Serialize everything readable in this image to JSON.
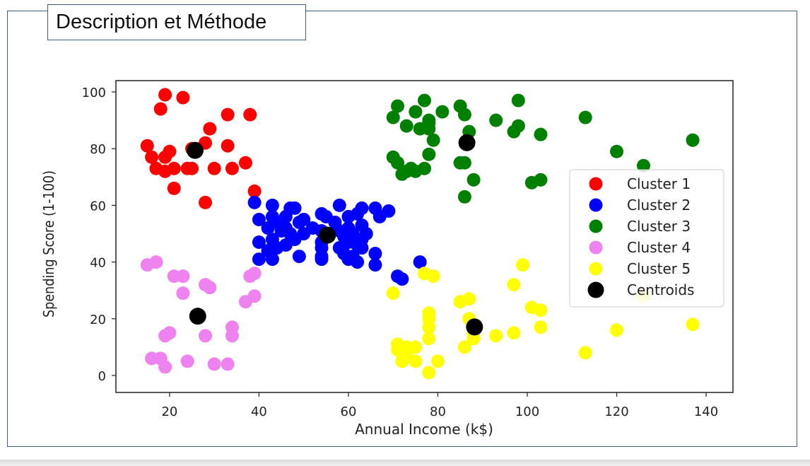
{
  "page": {
    "header_title": "Description et Méthode"
  },
  "chart_data": {
    "type": "scatter",
    "title": "",
    "xlabel": "Annual Income (k$)",
    "ylabel": "Spending Score (1-100)",
    "xlim": [
      8,
      146
    ],
    "ylim": [
      -6,
      104
    ],
    "xticks": [
      20,
      40,
      60,
      80,
      100,
      120,
      140
    ],
    "yticks": [
      0,
      20,
      40,
      60,
      80,
      100
    ],
    "grid": false,
    "legend_position": "center-right",
    "series": [
      {
        "name": "Cluster 1",
        "color": "#ff0000",
        "points": [
          [
            19,
            99
          ],
          [
            23,
            98
          ],
          [
            18,
            94
          ],
          [
            33,
            92
          ],
          [
            38,
            92
          ],
          [
            29,
            87
          ],
          [
            28,
            82
          ],
          [
            15,
            81
          ],
          [
            25,
            80
          ],
          [
            20,
            79
          ],
          [
            16,
            77
          ],
          [
            19,
            77
          ],
          [
            33,
            81
          ],
          [
            21,
            73
          ],
          [
            17,
            73
          ],
          [
            24,
            73
          ],
          [
            25,
            73
          ],
          [
            30,
            73
          ],
          [
            34,
            73
          ],
          [
            19,
            72
          ],
          [
            37,
            75
          ],
          [
            21,
            66
          ],
          [
            39,
            65
          ],
          [
            28,
            61
          ]
        ]
      },
      {
        "name": "Cluster 2",
        "color": "#0000ff",
        "points": [
          [
            39,
            61
          ],
          [
            43,
            60
          ],
          [
            47,
            59
          ],
          [
            48,
            59
          ],
          [
            54,
            57
          ],
          [
            58,
            60
          ],
          [
            63,
            59
          ],
          [
            66,
            59
          ],
          [
            69,
            58
          ],
          [
            62,
            57
          ],
          [
            55,
            56
          ],
          [
            46,
            56
          ],
          [
            43,
            56
          ],
          [
            60,
            56
          ],
          [
            67,
            56
          ],
          [
            40,
            55
          ],
          [
            44,
            54
          ],
          [
            49,
            54
          ],
          [
            50,
            55
          ],
          [
            57,
            54
          ],
          [
            63,
            53
          ],
          [
            42,
            52
          ],
          [
            46,
            52
          ],
          [
            52,
            52
          ],
          [
            60,
            52
          ],
          [
            45,
            51
          ],
          [
            54,
            51
          ],
          [
            58,
            51
          ],
          [
            47,
            50
          ],
          [
            50,
            50
          ],
          [
            61,
            50
          ],
          [
            64,
            50
          ],
          [
            55,
            49
          ],
          [
            59,
            49
          ],
          [
            43,
            48
          ],
          [
            48,
            48
          ],
          [
            63,
            48
          ],
          [
            40,
            47
          ],
          [
            54,
            47
          ],
          [
            60,
            47
          ],
          [
            46,
            46
          ],
          [
            62,
            46
          ],
          [
            44,
            45
          ],
          [
            54,
            45
          ],
          [
            58,
            45
          ],
          [
            63,
            45
          ],
          [
            42,
            44
          ],
          [
            59,
            43
          ],
          [
            66,
            43
          ],
          [
            49,
            42
          ],
          [
            54,
            42
          ],
          [
            61,
            42
          ],
          [
            40,
            41
          ],
          [
            43,
            41
          ],
          [
            54,
            41
          ],
          [
            60,
            41
          ],
          [
            62,
            40
          ],
          [
            66,
            39
          ],
          [
            76,
            40
          ],
          [
            71,
            35
          ],
          [
            72,
            34
          ]
        ]
      },
      {
        "name": "Cluster 3",
        "color": "#008000",
        "points": [
          [
            70,
            91
          ],
          [
            71,
            95
          ],
          [
            75,
            93
          ],
          [
            77,
            97
          ],
          [
            81,
            93
          ],
          [
            85,
            95
          ],
          [
            86,
            92
          ],
          [
            73,
            88
          ],
          [
            76,
            87
          ],
          [
            78,
            89
          ],
          [
            78,
            90
          ],
          [
            78,
            87
          ],
          [
            87,
            86
          ],
          [
            93,
            90
          ],
          [
            98,
            97
          ],
          [
            97,
            86
          ],
          [
            98,
            88
          ],
          [
            103,
            85
          ],
          [
            113,
            91
          ],
          [
            79,
            83
          ],
          [
            137,
            83
          ],
          [
            120,
            79
          ],
          [
            78,
            78
          ],
          [
            70,
            77
          ],
          [
            71,
            75
          ],
          [
            74,
            73
          ],
          [
            73,
            72
          ],
          [
            75,
            72
          ],
          [
            72,
            71
          ],
          [
            77,
            73
          ],
          [
            85,
            75
          ],
          [
            86,
            75
          ],
          [
            126,
            74
          ],
          [
            88,
            69
          ],
          [
            101,
            68
          ],
          [
            103,
            69
          ],
          [
            86,
            63
          ]
        ]
      },
      {
        "name": "Cluster 4",
        "color": "#ee82ee",
        "points": [
          [
            17,
            40
          ],
          [
            15,
            39
          ],
          [
            21,
            35
          ],
          [
            23,
            35
          ],
          [
            38,
            35
          ],
          [
            39,
            36
          ],
          [
            28,
            32
          ],
          [
            29,
            31
          ],
          [
            23,
            29
          ],
          [
            37,
            26
          ],
          [
            39,
            28
          ],
          [
            20,
            15
          ],
          [
            19,
            14
          ],
          [
            28,
            14
          ],
          [
            34,
            14
          ],
          [
            34,
            17
          ],
          [
            16,
            6
          ],
          [
            18,
            6
          ],
          [
            19,
            3
          ],
          [
            24,
            5
          ],
          [
            30,
            4
          ],
          [
            33,
            4
          ]
        ]
      },
      {
        "name": "Cluster 5",
        "color": "#ffff00",
        "points": [
          [
            77,
            36
          ],
          [
            79,
            35
          ],
          [
            70,
            29
          ],
          [
            99,
            39
          ],
          [
            97,
            32
          ],
          [
            85,
            26
          ],
          [
            87,
            27
          ],
          [
            126,
            28
          ],
          [
            101,
            24
          ],
          [
            103,
            23
          ],
          [
            78,
            22
          ],
          [
            78,
            20
          ],
          [
            87,
            20
          ],
          [
            78,
            17
          ],
          [
            88,
            13
          ],
          [
            88,
            15
          ],
          [
            93,
            14
          ],
          [
            97,
            15
          ],
          [
            103,
            17
          ],
          [
            120,
            16
          ],
          [
            137,
            18
          ],
          [
            78,
            13
          ],
          [
            71,
            11
          ],
          [
            71,
            9
          ],
          [
            73,
            10
          ],
          [
            75,
            10
          ],
          [
            86,
            10
          ],
          [
            113,
            8
          ],
          [
            72,
            5
          ],
          [
            75,
            5
          ],
          [
            80,
            5
          ],
          [
            73,
            8
          ],
          [
            78,
            1
          ]
        ]
      },
      {
        "name": "Centroids",
        "color": "#000000",
        "points": [
          [
            25.7,
            79.4
          ],
          [
            55.3,
            49.5
          ],
          [
            86.5,
            82.1
          ],
          [
            26.3,
            20.9
          ],
          [
            88.2,
            17.1
          ]
        ]
      }
    ]
  }
}
